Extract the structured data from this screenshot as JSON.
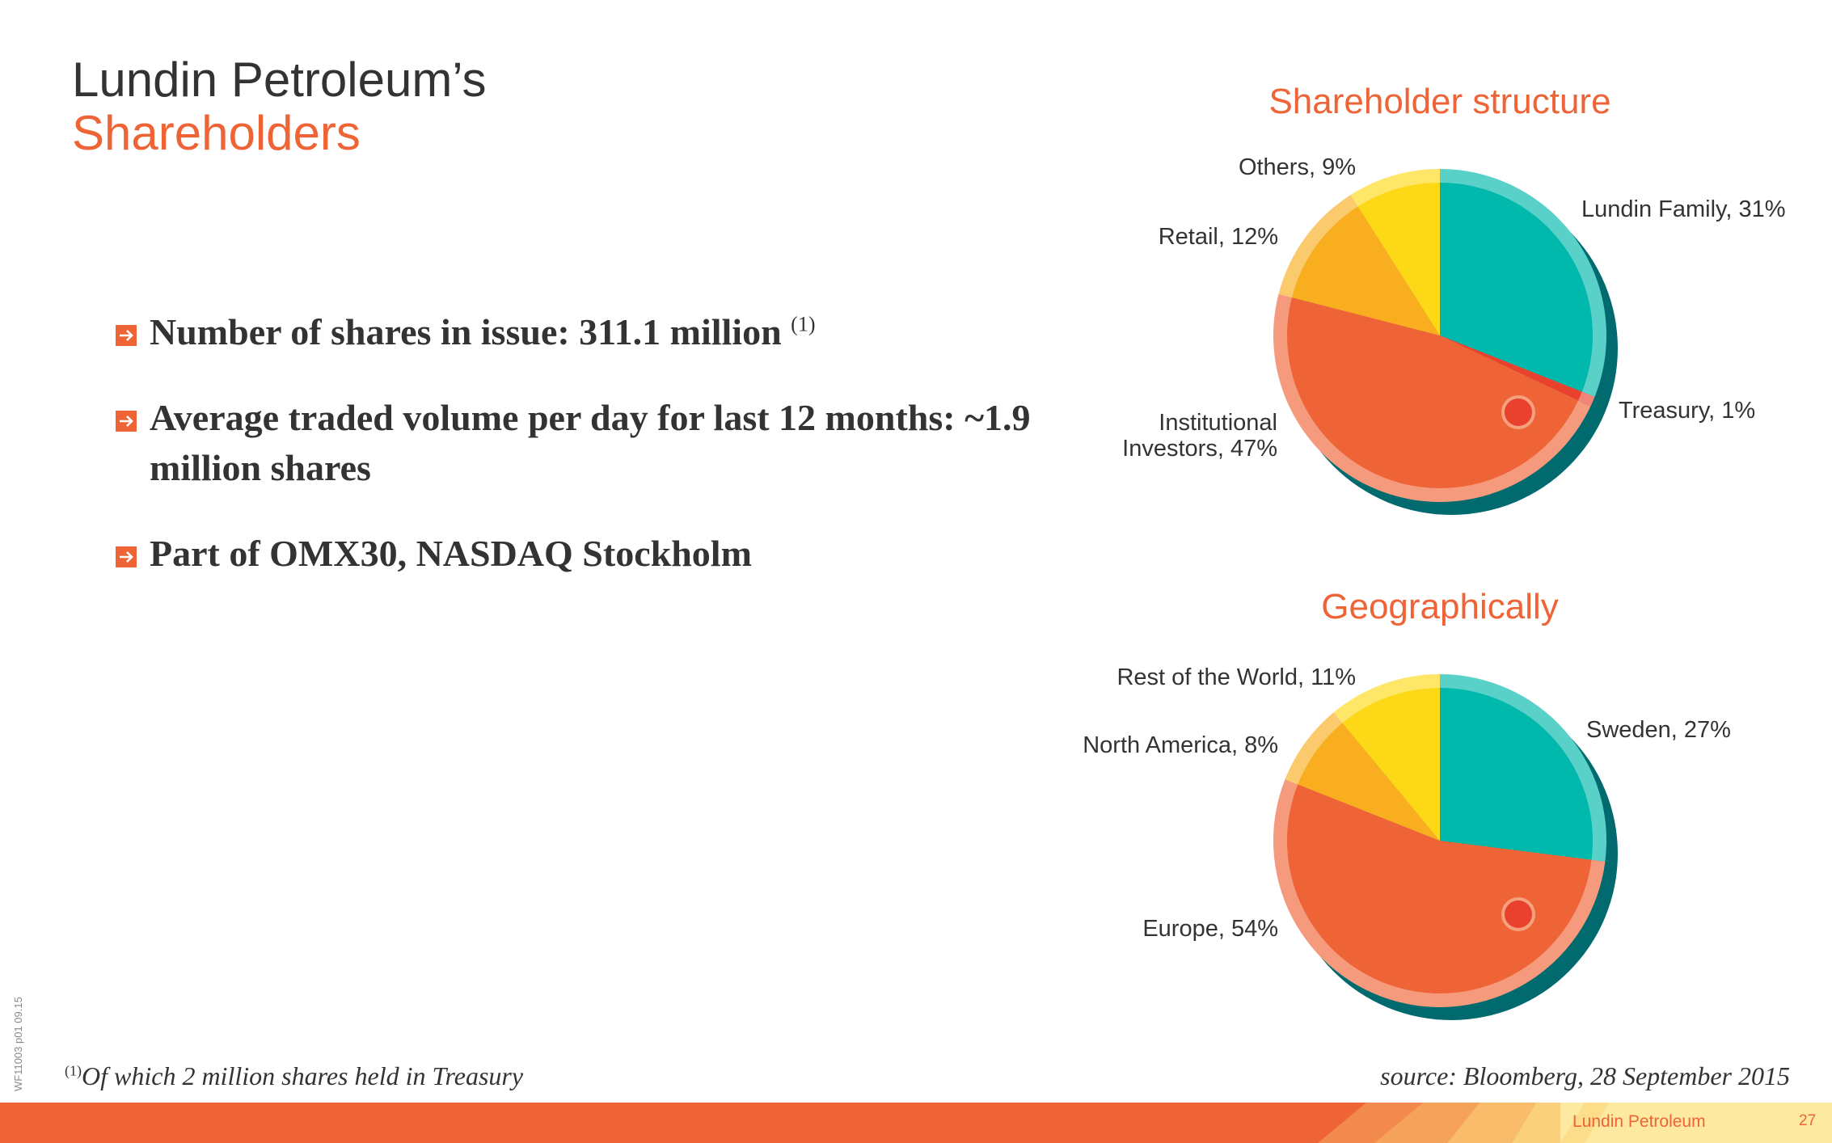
{
  "header": {
    "title_line1": "Lundin Petroleum’s",
    "title_line2": "Shareholders"
  },
  "bullets": [
    {
      "text": "Number of shares in issue: 311.1 million",
      "note": "(1)"
    },
    {
      "text": "Average traded volume per day for last 12 months: ~1.9 million shares"
    },
    {
      "text": "Part of OMX30, NASDAQ Stockholm"
    }
  ],
  "footnote": {
    "marker": "(1)",
    "text": "Of which 2 million shares held in Treasury"
  },
  "source": "source: Bloomberg, 28 September 2015",
  "side_code": "WF11003 p01 09.15",
  "footer": {
    "brand": "Lundin Petroleum",
    "page_number": "27"
  },
  "colors": {
    "accent": "#ef6436",
    "teal": "#00b8ac",
    "red": "#e8412e",
    "orange": "#ef6436",
    "amber": "#f8ae1e",
    "yellow": "#fdd816",
    "shadow": "#006a6e"
  },
  "chart_data": [
    {
      "type": "pie",
      "title": "Shareholder structure",
      "slices": [
        {
          "label": "Lundin Family, 31%",
          "value": 31,
          "color": "#00b8ac"
        },
        {
          "label": "Treasury, 1%",
          "value": 1,
          "color": "#e8412e"
        },
        {
          "label": "Institutional Investors, 47%",
          "value": 47,
          "color": "#ef6436"
        },
        {
          "label": "Retail, 12%",
          "value": 12,
          "color": "#f8ae1e"
        },
        {
          "label": "Others, 9%",
          "value": 9,
          "color": "#fdd816"
        }
      ]
    },
    {
      "type": "pie",
      "title": "Geographically",
      "slices": [
        {
          "label": "Sweden, 27%",
          "value": 27,
          "color": "#00b8ac"
        },
        {
          "label": "Europe, 54%",
          "value": 54,
          "color": "#ef6436"
        },
        {
          "label": "North America, 8%",
          "value": 8,
          "color": "#f8ae1e"
        },
        {
          "label": "Rest of the World, 11%",
          "value": 11,
          "color": "#fdd816"
        }
      ]
    }
  ]
}
